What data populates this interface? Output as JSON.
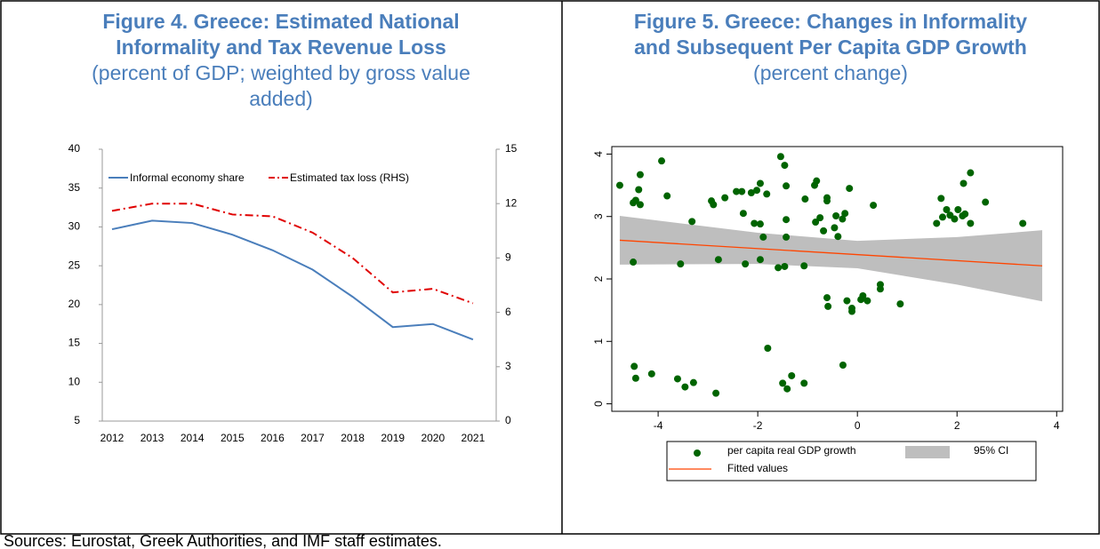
{
  "chart_data": [
    {
      "type": "line",
      "title": [
        "Figure 4. Greece: Estimated National",
        "Informality and Tax Revenue Loss"
      ],
      "subtitle": [
        "(percent of GDP; weighted by gross value",
        "added)"
      ],
      "categories": [
        "2012",
        "2013",
        "2014",
        "2015",
        "2016",
        "2017",
        "2018",
        "2019",
        "2020",
        "2021"
      ],
      "series": [
        {
          "name": "Informal economy share",
          "color": "#4a7ebb",
          "values": [
            29.7,
            30.8,
            30.5,
            29.0,
            27.0,
            24.5,
            21.0,
            17.1,
            17.5,
            15.5
          ]
        },
        {
          "name": "Estimated tax loss (RHS)",
          "color": "#e00000",
          "axis": "y2",
          "dash": "dashdot",
          "values": [
            11.6,
            12.0,
            12.0,
            11.4,
            11.3,
            10.4,
            9.0,
            7.1,
            7.3,
            6.5
          ]
        }
      ],
      "ylim": [
        5,
        40
      ],
      "yticks": [
        5,
        10,
        15,
        20,
        25,
        30,
        35,
        40
      ],
      "y2lim": [
        0,
        15
      ],
      "y2ticks": [
        0,
        3,
        6,
        9,
        12,
        15
      ],
      "legend": "top-left",
      "grid": false
    },
    {
      "type": "scatter",
      "title": [
        "Figure 5. Greece: Changes in Informality",
        "and Subsequent Per Capita GDP Growth"
      ],
      "subtitle": [
        "(percent change)"
      ],
      "series": [
        {
          "name": "per capita real GDP growth",
          "type": "scatter",
          "color": "#006400",
          "x": [
            -4.77,
            -4.36,
            -4.39,
            -4.45,
            -4.5,
            -4.36,
            -3.93,
            -3.82,
            -4.5,
            -3.55,
            -3.32,
            -2.93,
            -2.89,
            -2.66,
            -2.43,
            -2.32,
            -2.13,
            -2.02,
            -1.95,
            -1.82,
            -2.29,
            -2.07,
            -1.95,
            -1.54,
            -1.46,
            -1.43,
            -1.43,
            -1.05,
            -0.82,
            -0.86,
            -0.61,
            -0.61,
            -0.16,
            -0.84,
            -0.75,
            -0.43,
            -0.3,
            -0.25,
            -0.46,
            -0.39,
            -0.68,
            -1.89,
            -1.43,
            -1.59,
            -1.46,
            -1.07,
            -2.25,
            -1.95,
            -2.79,
            -0.61,
            -0.59,
            -0.21,
            -0.11,
            -0.11,
            0.07,
            0.11,
            0.2,
            0.46,
            0.46,
            0.86,
            0.32,
            1.59,
            1.68,
            1.71,
            1.79,
            1.86,
            1.95,
            2.02,
            2.11,
            2.16,
            2.13,
            2.27,
            2.27,
            2.57,
            3.32,
            -4.48,
            -4.45,
            -4.13,
            -3.61,
            -3.46,
            -3.29,
            -2.84,
            -1.8,
            -1.5,
            -1.41,
            -1.32,
            -1.07,
            -0.29
          ],
          "values": [
            3.5,
            3.67,
            3.43,
            3.26,
            3.22,
            3.19,
            3.89,
            3.33,
            2.27,
            2.24,
            2.92,
            3.25,
            3.19,
            3.3,
            3.4,
            3.4,
            3.38,
            3.42,
            3.53,
            3.36,
            3.05,
            2.89,
            2.88,
            3.96,
            3.82,
            3.49,
            2.95,
            3.28,
            3.57,
            3.5,
            3.3,
            3.25,
            3.45,
            2.91,
            2.98,
            3.01,
            2.96,
            3.05,
            2.82,
            2.68,
            2.77,
            2.67,
            2.67,
            2.18,
            2.2,
            2.21,
            2.24,
            2.31,
            2.31,
            1.7,
            1.56,
            1.65,
            1.53,
            1.48,
            1.67,
            1.73,
            1.65,
            1.84,
            1.91,
            1.6,
            3.18,
            2.89,
            3.29,
            2.99,
            3.11,
            3.02,
            2.96,
            3.11,
            3.01,
            3.04,
            3.53,
            3.7,
            2.89,
            3.23,
            2.89,
            0.6,
            0.41,
            0.48,
            0.4,
            0.27,
            0.34,
            0.17,
            0.89,
            0.33,
            0.24,
            0.45,
            0.33,
            0.62
          ]
        },
        {
          "name": "95% CI",
          "type": "area",
          "color": "#bebebe",
          "x": [
            -4.77,
            -2,
            0,
            2,
            3.71
          ],
          "upper": [
            3.01,
            2.74,
            2.61,
            2.67,
            2.78
          ],
          "lower": [
            2.23,
            2.24,
            2.17,
            1.91,
            1.64
          ]
        },
        {
          "name": "Fitted values",
          "type": "line",
          "color": "#ff4500",
          "x": [
            -4.77,
            3.71
          ],
          "values": [
            2.62,
            2.21
          ]
        }
      ],
      "xlim": [
        -4.93,
        4.12
      ],
      "xticks": [
        -4,
        -2,
        0,
        2,
        4
      ],
      "ylim": [
        -0.12,
        4.12
      ],
      "yticks": [
        0,
        1,
        2,
        3,
        4
      ],
      "legend": "bottom"
    }
  ],
  "source": "Sources: Eurostat, Greek Authorities, and IMF staff estimates."
}
